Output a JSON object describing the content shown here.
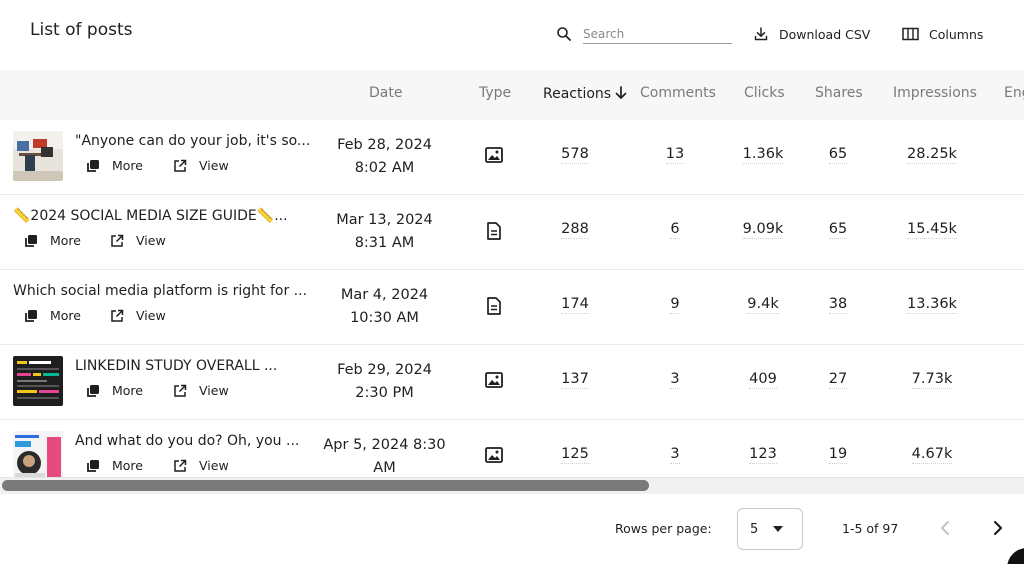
{
  "header": {
    "title": "List of posts",
    "search_placeholder": "Search",
    "download_label": "Download CSV",
    "columns_label": "Columns"
  },
  "table": {
    "columns": [
      "Date",
      "Type",
      "Reactions",
      "Comments",
      "Clicks",
      "Shares",
      "Impressions",
      "Eng"
    ],
    "sorted_column": "Reactions",
    "sort_direction": "descending",
    "rows": [
      {
        "title": "\"Anyone can do your job, it's so...",
        "date_line1": "Feb 28, 2024",
        "date_line2": "8:02 AM",
        "type": "image-icon",
        "has_thumb": true,
        "reactions": "578",
        "comments": "13",
        "clicks": "1.36k",
        "shares": "65",
        "impressions": "28.25k",
        "more": "More",
        "view": "View"
      },
      {
        "title": "📏2024 SOCIAL MEDIA SIZE GUIDE📏...",
        "date_line1": "Mar 13, 2024",
        "date_line2": "8:31 AM",
        "type": "document-icon",
        "has_thumb": false,
        "reactions": "288",
        "comments": "6",
        "clicks": "9.09k",
        "shares": "65",
        "impressions": "15.45k",
        "more": "More",
        "view": "View"
      },
      {
        "title": "Which social media platform is right for ...",
        "date_line1": "Mar 4, 2024",
        "date_line2": "10:30 AM",
        "type": "document-icon",
        "has_thumb": false,
        "reactions": "174",
        "comments": "9",
        "clicks": "9.4k",
        "shares": "38",
        "impressions": "13.36k",
        "more": "More",
        "view": "View"
      },
      {
        "title": "LINKEDIN STUDY OVERALL ...",
        "date_line1": "Feb 29, 2024",
        "date_line2": "2:30 PM",
        "type": "image-icon",
        "has_thumb": true,
        "reactions": "137",
        "comments": "3",
        "clicks": "409",
        "shares": "27",
        "impressions": "7.73k",
        "more": "More",
        "view": "View"
      },
      {
        "title": "And what do you do? Oh, you ...",
        "date_line1": "Apr 5, 2024 8:30",
        "date_line2": "AM",
        "type": "image-icon",
        "has_thumb": true,
        "reactions": "125",
        "comments": "3",
        "clicks": "123",
        "shares": "19",
        "impressions": "4.67k",
        "more": "More",
        "view": "View"
      }
    ]
  },
  "footer": {
    "rows_per_page_label": "Rows per page:",
    "rows_per_page_value": "5",
    "range_label": "1-5 of 97"
  },
  "colors": {
    "header_bg": "#f7f7f7",
    "text": "#1f1f1f",
    "muted": "#7a7a7a",
    "scroll_thumb": "#7a7a7a"
  }
}
